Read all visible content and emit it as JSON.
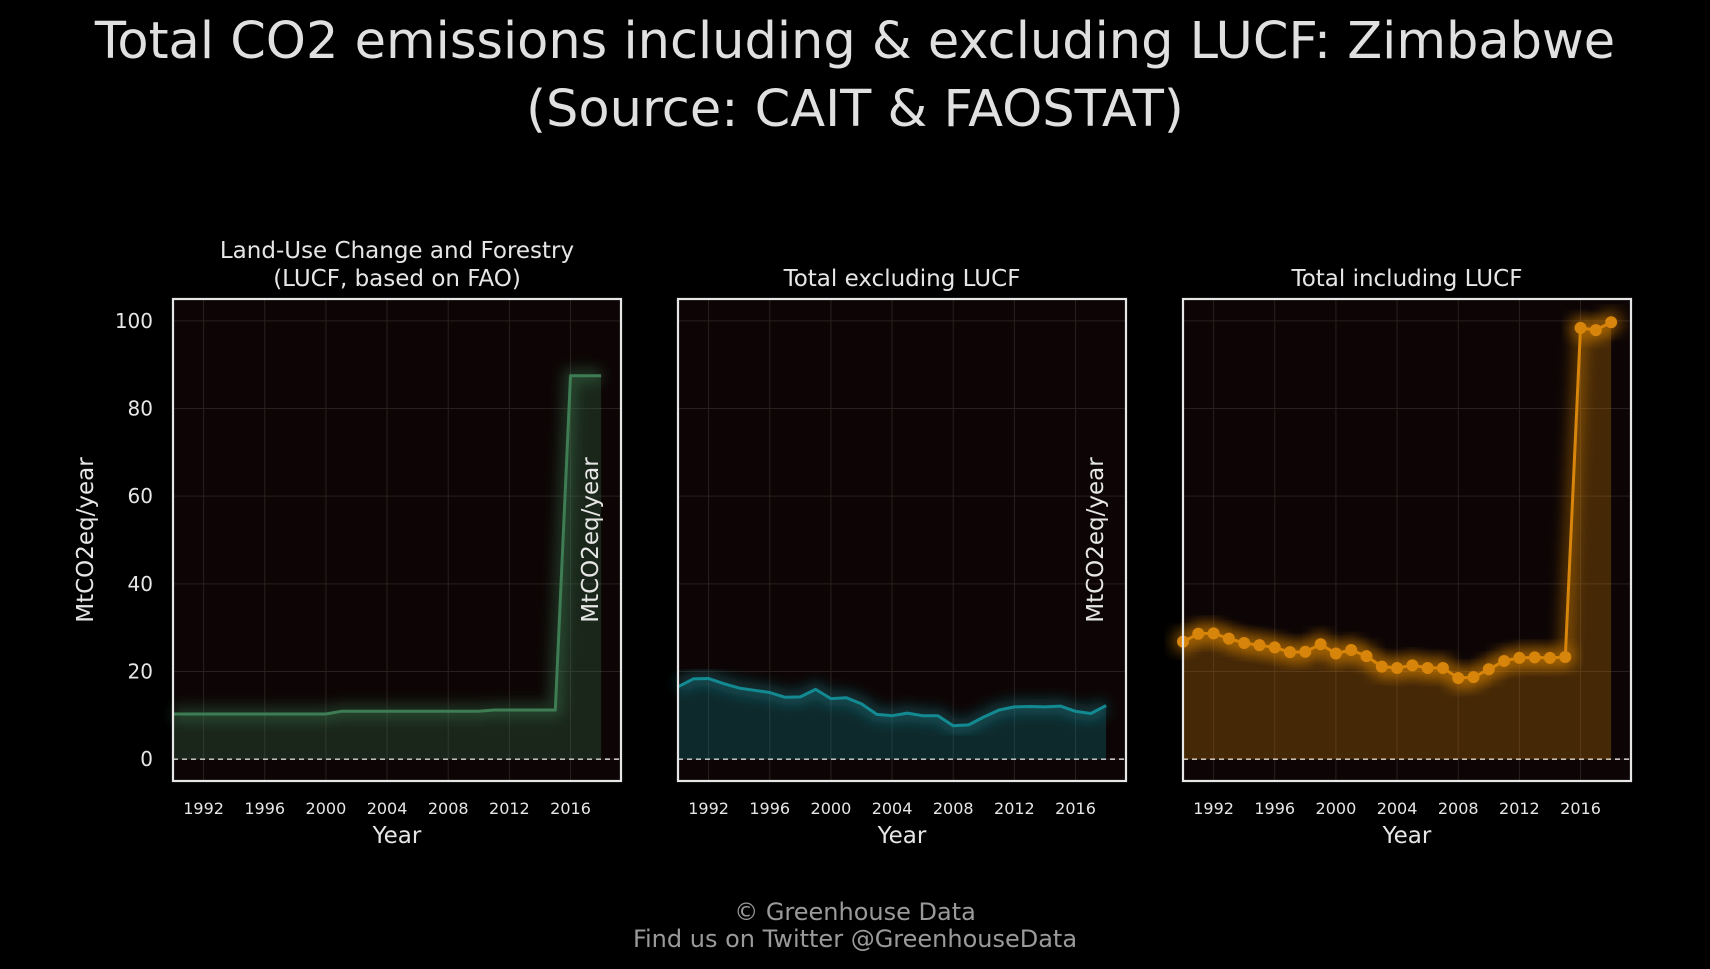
{
  "title": {
    "line1": "Total CO2 emissions including & excluding LUCF: Zimbabwe",
    "line2": "(Source: CAIT & FAOSTAT)"
  },
  "footer": {
    "line1": "© Greenhouse Data",
    "line2": "Find us on Twitter @GreenhouseData"
  },
  "colors": {
    "background": "#000000",
    "plot_background": "#0d0505",
    "lucf": "#3e7d53",
    "excl": "#138a92",
    "incl": "#d7850c"
  },
  "chart_data": [
    {
      "type": "area",
      "title_lines": [
        "Land-Use Change and Forestry",
        "(LUCF, based on FAO)"
      ],
      "xlabel": "Year",
      "ylabel": "MtCO2eq/year",
      "x": [
        1990,
        1991,
        1992,
        1993,
        1994,
        1995,
        1996,
        1997,
        1998,
        1999,
        2000,
        2001,
        2002,
        2003,
        2004,
        2005,
        2006,
        2007,
        2008,
        2009,
        2010,
        2011,
        2012,
        2013,
        2014,
        2015,
        2016,
        2017,
        2018
      ],
      "values": [
        10.3,
        10.3,
        10.3,
        10.3,
        10.3,
        10.3,
        10.3,
        10.3,
        10.3,
        10.3,
        10.3,
        10.9,
        10.9,
        10.9,
        10.9,
        10.9,
        10.9,
        10.9,
        10.9,
        10.9,
        10.9,
        11.2,
        11.2,
        11.2,
        11.2,
        11.2,
        87.5,
        87.5,
        87.5
      ],
      "markers": false,
      "color": "#3e7d53",
      "xticks": [
        1992,
        1996,
        2000,
        2004,
        2008,
        2012,
        2016
      ],
      "yticks": [
        0,
        20,
        40,
        60,
        80,
        100
      ],
      "xlim": [
        1990,
        2019.3
      ],
      "ylim": [
        -5,
        105
      ],
      "show_y_ticks": true
    },
    {
      "type": "area",
      "title_lines": [
        "Total excluding LUCF"
      ],
      "xlabel": "Year",
      "ylabel": "MtCO2eq/year",
      "x": [
        1990,
        1991,
        1992,
        1993,
        1994,
        1995,
        1996,
        1997,
        1998,
        1999,
        2000,
        2001,
        2002,
        2003,
        2004,
        2005,
        2006,
        2007,
        2008,
        2009,
        2010,
        2011,
        2012,
        2013,
        2014,
        2015,
        2016,
        2017,
        2018
      ],
      "values": [
        16.5,
        18.3,
        18.4,
        17.2,
        16.2,
        15.7,
        15.2,
        14.1,
        14.2,
        15.9,
        13.8,
        14.0,
        12.6,
        10.2,
        9.9,
        10.5,
        9.9,
        9.9,
        7.6,
        7.8,
        9.6,
        11.2,
        11.9,
        12.0,
        11.9,
        12.1,
        10.9,
        10.4,
        12.2
      ],
      "markers": false,
      "color": "#138a92",
      "xticks": [
        1992,
        1996,
        2000,
        2004,
        2008,
        2012,
        2016
      ],
      "yticks": [
        0,
        20,
        40,
        60,
        80,
        100
      ],
      "xlim": [
        1990,
        2019.3
      ],
      "ylim": [
        -5,
        105
      ],
      "show_y_ticks": false
    },
    {
      "type": "area",
      "title_lines": [
        "Total including LUCF"
      ],
      "xlabel": "Year",
      "ylabel": "MtCO2eq/year",
      "x": [
        1990,
        1991,
        1992,
        1993,
        1994,
        1995,
        1996,
        1997,
        1998,
        1999,
        2000,
        2001,
        2002,
        2003,
        2004,
        2005,
        2006,
        2007,
        2008,
        2009,
        2010,
        2011,
        2012,
        2013,
        2014,
        2015,
        2016,
        2017,
        2018
      ],
      "values": [
        26.8,
        28.6,
        28.7,
        27.5,
        26.5,
        26.0,
        25.5,
        24.4,
        24.5,
        26.2,
        24.1,
        24.9,
        23.5,
        21.1,
        20.8,
        21.4,
        20.8,
        20.8,
        18.5,
        18.7,
        20.5,
        22.4,
        23.1,
        23.2,
        23.1,
        23.3,
        98.4,
        97.9,
        99.7
      ],
      "markers": true,
      "color": "#d7850c",
      "xticks": [
        1992,
        1996,
        2000,
        2004,
        2008,
        2012,
        2016
      ],
      "yticks": [
        0,
        20,
        40,
        60,
        80,
        100
      ],
      "xlim": [
        1990,
        2019.3
      ],
      "ylim": [
        -5,
        105
      ],
      "show_y_ticks": false
    }
  ]
}
